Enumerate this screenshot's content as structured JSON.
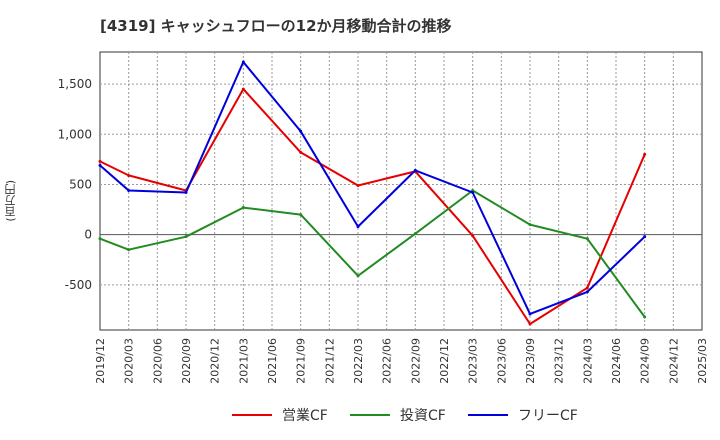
{
  "chart_data": {
    "type": "line",
    "title": "[4319]  キャッシュフローの12か月移動合計の推移",
    "ylabel": "(百万円)",
    "xlabel": "",
    "ylim": [
      -950,
      1820
    ],
    "yticks": [
      -500,
      0,
      500,
      1000,
      1500
    ],
    "ytick_labels": [
      "-500",
      "0",
      "500",
      "1,000",
      "1,500"
    ],
    "categories": [
      "2019/12",
      "2020/03",
      "2020/06",
      "2020/09",
      "2020/12",
      "2021/03",
      "2021/06",
      "2021/09",
      "2021/12",
      "2022/03",
      "2022/06",
      "2022/09",
      "2022/12",
      "2023/03",
      "2023/06",
      "2023/09",
      "2023/12",
      "2024/03",
      "2024/06",
      "2024/09",
      "2024/12",
      "2025/03"
    ],
    "grid": true,
    "legend_position": "bottom",
    "series": [
      {
        "name": "営業CF",
        "color": "#e60000",
        "x": [
          "2019/12",
          "2020/03",
          "2020/09",
          "2021/03",
          "2021/09",
          "2022/03",
          "2022/09",
          "2023/03",
          "2023/09",
          "2024/03",
          "2024/09"
        ],
        "values": [
          730,
          590,
          440,
          1450,
          820,
          490,
          630,
          -10,
          -890,
          -530,
          800
        ]
      },
      {
        "name": "投資CF",
        "color": "#228b22",
        "x": [
          "2019/12",
          "2020/03",
          "2020/09",
          "2021/03",
          "2021/09",
          "2022/03",
          "2022/09",
          "2023/03",
          "2023/09",
          "2024/03",
          "2024/09"
        ],
        "values": [
          -40,
          -150,
          -20,
          270,
          200,
          -410,
          10,
          440,
          100,
          -40,
          -820
        ]
      },
      {
        "name": "フリーCF",
        "color": "#0000dd",
        "x": [
          "2019/12",
          "2020/03",
          "2020/09",
          "2021/03",
          "2021/09",
          "2022/03",
          "2022/09",
          "2023/03",
          "2023/09",
          "2024/03",
          "2024/09"
        ],
        "values": [
          690,
          440,
          420,
          1720,
          1030,
          80,
          640,
          420,
          -790,
          -570,
          -20
        ]
      }
    ]
  }
}
